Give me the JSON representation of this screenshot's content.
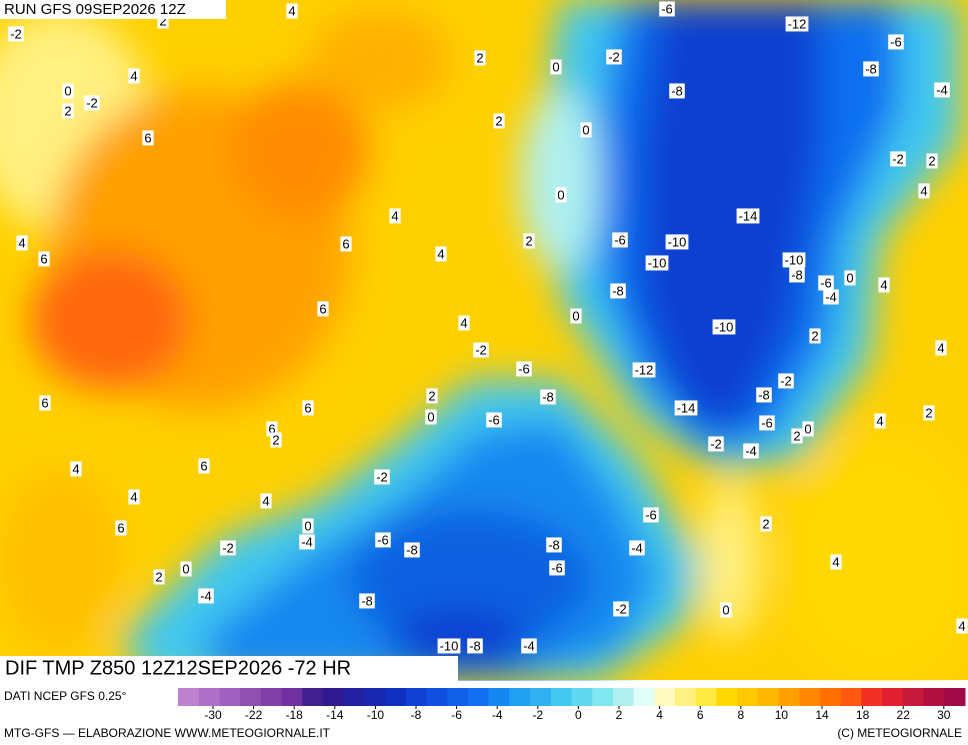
{
  "header": {
    "run": "RUN GFS 09SEP2026 12Z"
  },
  "map": {
    "caption": "DIF TMP Z850 12Z12SEP2026 -72 HR",
    "contour_labels": [
      -2,
      2,
      4,
      4,
      0,
      -2,
      2,
      6,
      2,
      0,
      -2,
      2,
      0,
      -6,
      -12,
      -6,
      -8,
      -4,
      -8,
      -2,
      2,
      4,
      0,
      -14,
      4,
      4,
      6,
      6,
      4,
      2,
      -6,
      -10,
      -10,
      -10,
      -8,
      -6,
      0,
      -4,
      4,
      -8,
      6,
      4,
      0,
      -10,
      2,
      4,
      -2,
      -6,
      -12,
      -2,
      6,
      6,
      2,
      0,
      -8,
      -14,
      -8,
      2,
      4,
      -6,
      -6,
      2,
      0,
      6,
      2,
      -2,
      -4,
      6,
      4,
      -2,
      4,
      4,
      6,
      0,
      -6,
      2,
      -4,
      -6,
      -8,
      -8,
      -4,
      -2,
      -6,
      4,
      2,
      0,
      -4,
      -8,
      -2,
      0,
      4,
      -10,
      -8,
      -4
    ]
  },
  "footer": {
    "source": "DATI NCEP GFS 0.25°",
    "credit": "MTG-GFS — ELABORAZIONE WWW.METEOGIORNALE.IT",
    "copyright": "(C) METEOGIORNALE"
  },
  "colorbar": {
    "ticks": [
      -30,
      -22,
      -18,
      -14,
      -10,
      -8,
      -6,
      -4,
      -2,
      0,
      2,
      4,
      6,
      8,
      10,
      14,
      18,
      22,
      30
    ],
    "colors": [
      "#c080d0",
      "#b070c8",
      "#a060c0",
      "#9050b0",
      "#8040a8",
      "#7030a0",
      "#402090",
      "#301890",
      "#2020a0",
      "#1828b0",
      "#1030c0",
      "#1040d0",
      "#1050e0",
      "#1060e8",
      "#1070f0",
      "#1488f0",
      "#20a0f0",
      "#30b0f0",
      "#40c8f0",
      "#60d8f0",
      "#80e8f0",
      "#b0f0f0",
      "#e0fff8",
      "#fffac0",
      "#fff080",
      "#ffe840",
      "#ffd800",
      "#ffc800",
      "#ffb800",
      "#ffa000",
      "#ff8800",
      "#ff7000",
      "#ff5810",
      "#f03020",
      "#e02030",
      "#c81838",
      "#b01040",
      "#a00848"
    ]
  }
}
